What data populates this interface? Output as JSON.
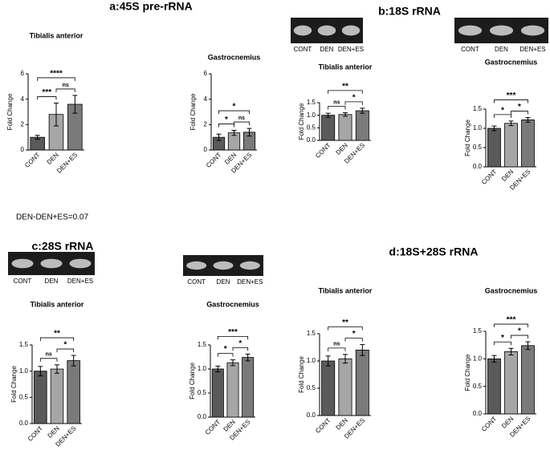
{
  "sections": [
    {
      "title": "a:45S pre-rRNA"
    },
    {
      "title": "b:18S rRNA"
    },
    {
      "title": "c:28S rRNA"
    },
    {
      "title": "d:18S+28S rRNA"
    }
  ],
  "note": "DEN-DEN+ES=0.07",
  "gels": [
    {
      "lanes": [
        "CONT",
        "DEN",
        "DEN+ES"
      ]
    },
    {
      "lanes": [
        "CONT",
        "DEN",
        "DEN+ES"
      ]
    },
    {
      "lanes": [
        "CONT",
        "DEN",
        "DEN+ES"
      ]
    },
    {
      "lanes": [
        "CONT",
        "DEN",
        "DEN+ES"
      ]
    }
  ],
  "chart_data": [
    {
      "type": "bar",
      "title": "Tibialis anterior",
      "ylabel": "Fold Change",
      "categories": [
        "CONT",
        "DEN",
        "DEN+ES"
      ],
      "values": [
        1.0,
        2.8,
        3.6
      ],
      "errors": [
        0.15,
        0.9,
        0.7
      ],
      "colors": [
        "#5a5a5a",
        "#a6a6a6",
        "#7a7a7a"
      ],
      "ylim": [
        0,
        6
      ],
      "yticks": [
        0,
        2,
        4,
        6
      ],
      "comparisons": [
        {
          "groups": [
            "CONT",
            "DEN"
          ],
          "label": "***"
        },
        {
          "groups": [
            "DEN",
            "DEN+ES"
          ],
          "label": "ns"
        },
        {
          "groups": [
            "CONT",
            "DEN+ES"
          ],
          "label": "****"
        }
      ]
    },
    {
      "type": "bar",
      "title": "Gastrocnemius",
      "ylabel": "Fold Change",
      "categories": [
        "CONT",
        "DEN",
        "DEN+ES"
      ],
      "values": [
        1.0,
        1.35,
        1.4
      ],
      "errors": [
        0.25,
        0.2,
        0.3
      ],
      "colors": [
        "#5a5a5a",
        "#a6a6a6",
        "#7a7a7a"
      ],
      "ylim": [
        0,
        6
      ],
      "yticks": [
        0,
        2,
        4,
        6
      ],
      "comparisons": [
        {
          "groups": [
            "CONT",
            "DEN"
          ],
          "label": "*"
        },
        {
          "groups": [
            "DEN",
            "DEN+ES"
          ],
          "label": "ns"
        },
        {
          "groups": [
            "CONT",
            "DEN+ES"
          ],
          "label": "*"
        }
      ]
    },
    {
      "type": "bar",
      "title": "Tibialis anterior",
      "ylabel": "Fold Change",
      "categories": [
        "CONT",
        "DEN",
        "DEN+ES"
      ],
      "values": [
        1.0,
        1.03,
        1.18
      ],
      "errors": [
        0.08,
        0.07,
        0.1
      ],
      "colors": [
        "#5a5a5a",
        "#a6a6a6",
        "#7a7a7a"
      ],
      "ylim": [
        0,
        1.5
      ],
      "yticks": [
        {
          "value": 0,
          "label": "0.0"
        },
        0.5,
        {
          "value": 1,
          "label": "1.0"
        },
        1.5
      ],
      "comparisons": [
        {
          "groups": [
            "CONT",
            "DEN"
          ],
          "label": "ns"
        },
        {
          "groups": [
            "DEN",
            "DEN+ES"
          ],
          "label": "*"
        },
        {
          "groups": [
            "CONT",
            "DEN+ES"
          ],
          "label": "**"
        }
      ]
    },
    {
      "type": "bar",
      "title": "Gastrocnemius",
      "ylabel": "Fold Change",
      "categories": [
        "CONT",
        "DEN",
        "DEN+ES"
      ],
      "values": [
        1.0,
        1.13,
        1.22
      ],
      "errors": [
        0.06,
        0.06,
        0.06
      ],
      "colors": [
        "#5a5a5a",
        "#a6a6a6",
        "#7a7a7a"
      ],
      "ylim": [
        0,
        1.5
      ],
      "yticks": [
        {
          "value": 0,
          "label": "0.0"
        },
        0.5,
        {
          "value": 1,
          "label": "1.0"
        },
        1.5
      ],
      "comparisons": [
        {
          "groups": [
            "CONT",
            "DEN"
          ],
          "label": "*"
        },
        {
          "groups": [
            "DEN",
            "DEN+ES"
          ],
          "label": "*"
        },
        {
          "groups": [
            "CONT",
            "DEN+ES"
          ],
          "label": "***"
        }
      ]
    },
    {
      "type": "bar",
      "title": "Tibialis anterior",
      "ylabel": "Fold Change",
      "categories": [
        "CONT",
        "DEN",
        "DEN+ES"
      ],
      "values": [
        1.0,
        1.04,
        1.2
      ],
      "errors": [
        0.09,
        0.08,
        0.1
      ],
      "colors": [
        "#5a5a5a",
        "#a6a6a6",
        "#7a7a7a"
      ],
      "ylim": [
        0,
        1.5
      ],
      "yticks": [
        {
          "value": 0,
          "label": "0.0"
        },
        0.5,
        {
          "value": 1,
          "label": "1.0"
        },
        1.5
      ],
      "comparisons": [
        {
          "groups": [
            "CONT",
            "DEN"
          ],
          "label": "ns"
        },
        {
          "groups": [
            "DEN",
            "DEN+ES"
          ],
          "label": "*"
        },
        {
          "groups": [
            "CONT",
            "DEN+ES"
          ],
          "label": "**"
        }
      ]
    },
    {
      "type": "bar",
      "title": "Gastrocnemius",
      "ylabel": "Fold Change",
      "categories": [
        "CONT",
        "DEN",
        "DEN+ES"
      ],
      "values": [
        1.0,
        1.13,
        1.24
      ],
      "errors": [
        0.06,
        0.06,
        0.07
      ],
      "colors": [
        "#5a5a5a",
        "#a6a6a6",
        "#7a7a7a"
      ],
      "ylim": [
        0,
        1.5
      ],
      "yticks": [
        {
          "value": 0,
          "label": "0.0"
        },
        0.5,
        {
          "value": 1,
          "label": "1.0"
        },
        1.5
      ],
      "comparisons": [
        {
          "groups": [
            "CONT",
            "DEN"
          ],
          "label": "*"
        },
        {
          "groups": [
            "DEN",
            "DEN+ES"
          ],
          "label": "*"
        },
        {
          "groups": [
            "CONT",
            "DEN+ES"
          ],
          "label": "***"
        }
      ]
    },
    {
      "type": "bar",
      "title": "Tibialis anterior",
      "ylabel": "Fold Change",
      "categories": [
        "CONT",
        "DEN",
        "DEN+ES"
      ],
      "values": [
        1.0,
        1.04,
        1.2
      ],
      "errors": [
        0.09,
        0.08,
        0.1
      ],
      "colors": [
        "#5a5a5a",
        "#a6a6a6",
        "#7a7a7a"
      ],
      "ylim": [
        0,
        1.5
      ],
      "yticks": [
        {
          "value": 0,
          "label": "0.0"
        },
        0.5,
        {
          "value": 1,
          "label": "1.0"
        },
        1.5
      ],
      "comparisons": [
        {
          "groups": [
            "CONT",
            "DEN"
          ],
          "label": "ns"
        },
        {
          "groups": [
            "DEN",
            "DEN+ES"
          ],
          "label": "*"
        },
        {
          "groups": [
            "CONT",
            "DEN+ES"
          ],
          "label": "**"
        }
      ]
    },
    {
      "type": "bar",
      "title": "Gastrocnemius",
      "ylabel": "Fold Change",
      "categories": [
        "CONT",
        "DEN",
        "DEN+ES"
      ],
      "values": [
        1.0,
        1.13,
        1.24
      ],
      "errors": [
        0.06,
        0.06,
        0.07
      ],
      "colors": [
        "#5a5a5a",
        "#a6a6a6",
        "#7a7a7a"
      ],
      "ylim": [
        0,
        1.5
      ],
      "yticks": [
        {
          "value": 0,
          "label": "0.0"
        },
        0.5,
        {
          "value": 1,
          "label": "1.0"
        },
        1.5
      ],
      "comparisons": [
        {
          "groups": [
            "CONT",
            "DEN"
          ],
          "label": "*"
        },
        {
          "groups": [
            "DEN",
            "DEN+ES"
          ],
          "label": "*"
        },
        {
          "groups": [
            "CONT",
            "DEN+ES"
          ],
          "label": "***"
        }
      ]
    }
  ]
}
